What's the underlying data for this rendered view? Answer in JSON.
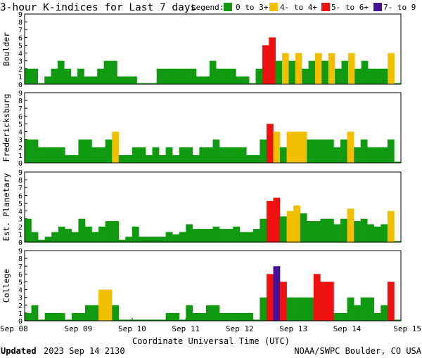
{
  "title": "3-hour K-indices for Last 7 days",
  "legend": {
    "label": "Legend:",
    "items": [
      {
        "label": "0 to 3+",
        "color": "#119911"
      },
      {
        "label": "4- to 4+",
        "color": "#f0c000"
      },
      {
        "label": "5- to 6+",
        "color": "#ee1111"
      },
      {
        "label": "7- to 9",
        "color": "#441199"
      }
    ]
  },
  "xlabel": "Coordinate Universal Time (UTC)",
  "x_ticks": [
    "Sep 08",
    "Sep 09",
    "Sep 10",
    "Sep 11",
    "Sep 12",
    "Sep 13",
    "Sep 14",
    "Sep 15"
  ],
  "footer": {
    "updated_label": "Updated",
    "updated_value": "2023 Sep 14 2130",
    "source": "NOAA/SWPC Boulder, CO USA"
  },
  "chart_data": [
    {
      "type": "bar",
      "name": "Boulder",
      "ylabel": "Boulder",
      "ylim": [
        0,
        9
      ],
      "y_ticks": [
        0,
        1,
        2,
        3,
        4,
        5,
        6,
        7,
        8,
        9
      ],
      "values": [
        2,
        2,
        0,
        1,
        2,
        3,
        2,
        1,
        2,
        1,
        1,
        2,
        3,
        3,
        1,
        1,
        1,
        0,
        0,
        0,
        2,
        2,
        2,
        2,
        2,
        2,
        1,
        1,
        3,
        2,
        2,
        2,
        1,
        1,
        0,
        2,
        5,
        6,
        3,
        4,
        3,
        4,
        2,
        3,
        4,
        3,
        4,
        2,
        3,
        4,
        2,
        3,
        2,
        2,
        2,
        4,
        0
      ]
    },
    {
      "type": "bar",
      "name": "Fredericksburg",
      "ylabel": "Fredericksburg",
      "ylim": [
        0,
        9
      ],
      "y_ticks": [
        0,
        1,
        2,
        3,
        4,
        5,
        6,
        7,
        8,
        9
      ],
      "values": [
        3,
        3,
        2,
        2,
        2,
        2,
        1,
        1,
        3,
        3,
        2,
        2,
        3,
        4,
        1,
        1,
        2,
        2,
        1,
        2,
        1,
        2,
        1,
        2,
        2,
        1,
        2,
        2,
        3,
        2,
        2,
        2,
        2,
        1,
        1,
        3,
        5,
        4,
        2,
        4,
        4,
        4,
        3,
        3,
        3,
        3,
        2,
        3,
        4,
        2,
        3,
        2,
        2,
        2,
        3,
        0
      ]
    },
    {
      "type": "bar",
      "name": "Est. Planetary",
      "ylabel": "Est. Planetary",
      "ylim": [
        0,
        9
      ],
      "y_ticks": [
        0,
        1,
        2,
        3,
        4,
        5,
        6,
        7,
        8,
        9
      ],
      "values": [
        3,
        1.3,
        0.3,
        0.7,
        1.3,
        2,
        1.7,
        1.3,
        3,
        2,
        1.3,
        2,
        2.7,
        2.7,
        0.3,
        0.7,
        2,
        0.7,
        0.7,
        0.7,
        0.7,
        1.3,
        1,
        1.3,
        2.3,
        1.7,
        1.7,
        1.7,
        2,
        1.7,
        1.7,
        2,
        1.3,
        1.3,
        1.7,
        3,
        5.3,
        5.7,
        3.3,
        4,
        4.7,
        3.7,
        2.7,
        2.7,
        3,
        3,
        2.3,
        3,
        4.3,
        2.7,
        3,
        2.3,
        2,
        2.3,
        4,
        0
      ]
    },
    {
      "type": "bar",
      "name": "College",
      "ylabel": "College",
      "ylim": [
        0,
        9
      ],
      "y_ticks": [
        0,
        1,
        2,
        3,
        4,
        5,
        6,
        7,
        8,
        9
      ],
      "values": [
        1,
        2,
        0,
        1,
        1,
        1,
        0,
        1,
        1,
        2,
        2,
        4,
        4,
        2,
        0,
        0,
        0,
        0,
        0,
        0,
        0,
        1,
        1,
        0,
        2,
        1,
        1,
        2,
        2,
        1,
        1,
        1,
        1,
        1,
        0,
        3,
        6,
        7,
        5,
        3,
        3,
        3,
        3,
        6,
        5,
        5,
        1,
        1,
        3,
        2,
        3,
        3,
        1,
        2,
        5,
        0
      ]
    }
  ]
}
